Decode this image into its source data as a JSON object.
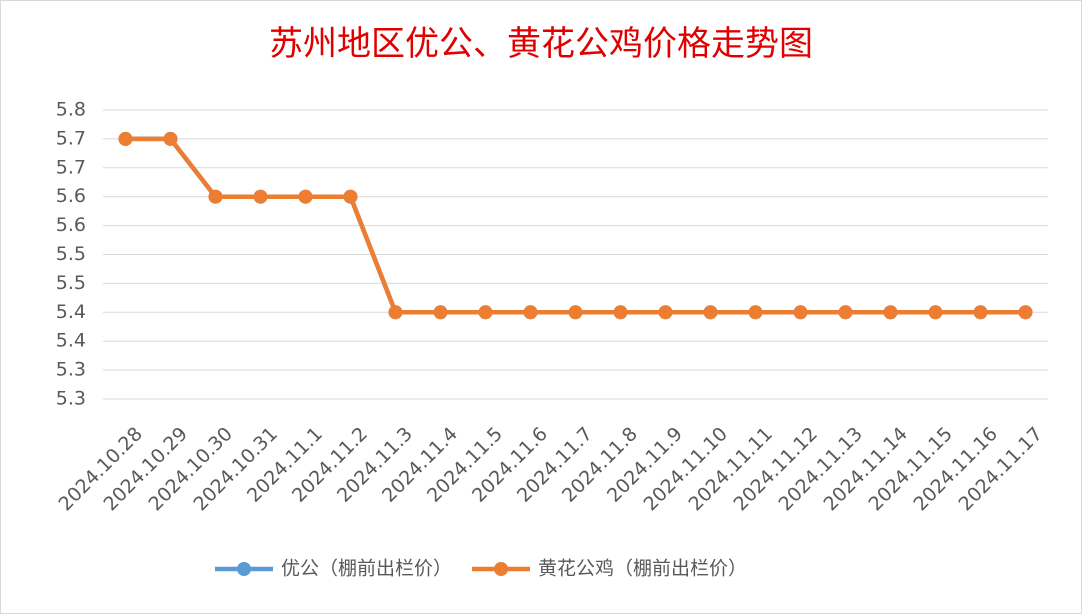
{
  "chart_data": {
    "type": "line",
    "title": "苏州地区优公、黄花公鸡价格走势图",
    "categories": [
      "2024.10.28",
      "2024.10.29",
      "2024.10.30",
      "2024.10.31",
      "2024.11.1",
      "2024.11.2",
      "2024.11.3",
      "2024.11.4",
      "2024.11.5",
      "2024.11.6",
      "2024.11.7",
      "2024.11.8",
      "2024.11.9",
      "2024.11.10",
      "2024.11.11",
      "2024.11.12",
      "2024.11.13",
      "2024.11.14",
      "2024.11.15",
      "2024.11.16",
      "2024.11.17"
    ],
    "series": [
      {
        "name": "优公（棚前出栏价）",
        "color": "#5b9bd5",
        "values": [
          5.7,
          5.7,
          5.6,
          5.6,
          5.6,
          5.6,
          5.4,
          5.4,
          5.4,
          5.4,
          5.4,
          5.4,
          5.4,
          5.4,
          5.4,
          5.4,
          5.4,
          5.4,
          5.4,
          5.4,
          5.4
        ]
      },
      {
        "name": "黄花公鸡（棚前出栏价）",
        "color": "#ed7d31",
        "values": [
          5.7,
          5.7,
          5.6,
          5.6,
          5.6,
          5.6,
          5.4,
          5.4,
          5.4,
          5.4,
          5.4,
          5.4,
          5.4,
          5.4,
          5.4,
          5.4,
          5.4,
          5.4,
          5.4,
          5.4,
          5.4
        ]
      }
    ],
    "ylim": [
      5.25,
      5.75
    ],
    "yticks": [
      {
        "value": 5.25,
        "label": "5.3"
      },
      {
        "value": 5.3,
        "label": "5.3"
      },
      {
        "value": 5.35,
        "label": "5.4"
      },
      {
        "value": 5.4,
        "label": "5.4"
      },
      {
        "value": 5.45,
        "label": "5.5"
      },
      {
        "value": 5.5,
        "label": "5.5"
      },
      {
        "value": 5.55,
        "label": "5.6"
      },
      {
        "value": 5.6,
        "label": "5.6"
      },
      {
        "value": 5.65,
        "label": "5.7"
      },
      {
        "value": 5.7,
        "label": "5.7"
      },
      {
        "value": 5.75,
        "label": "5.8"
      }
    ],
    "grid": true,
    "legend": "bottom"
  }
}
